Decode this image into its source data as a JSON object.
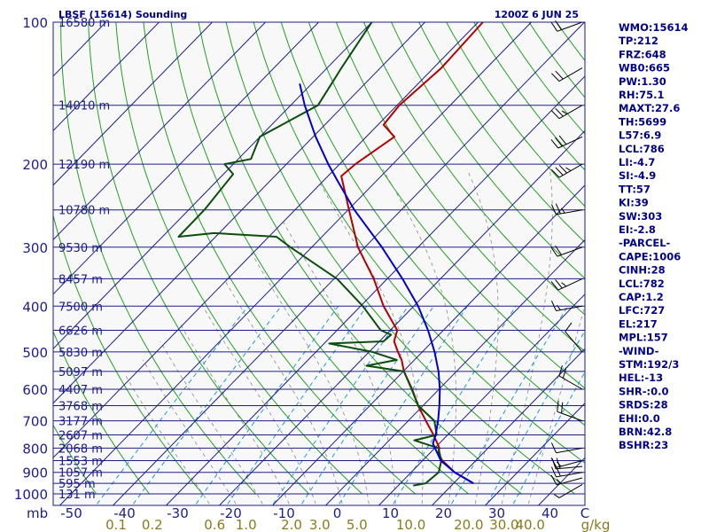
{
  "header": {
    "title": "LBSF (15614) Sounding",
    "valid_time": "1200Z  6 JUN 25"
  },
  "indices": [
    "WMO:15614",
    "TP:212",
    "FRZ:648",
    "WB0:665",
    "PW:1.30",
    "RH:75.1",
    "MAXT:27.6",
    "TH:5699",
    "L57:6.9",
    "LCL:786",
    "LI:-4.7",
    "SI:-4.9",
    "TT:57",
    "KI:39",
    "SW:303",
    "EI:-2.8",
    "-PARCEL-",
    "CAPE:1006",
    "CINH:28",
    "LCL:782",
    "CAP:1.2",
    "LFC:727",
    "EL:217",
    "MPL:157",
    "-WIND-",
    "STM:192/3",
    "HEL:-13",
    "SHR-:0.0",
    "SRDS:28",
    "EHI:0.0",
    "BRN:42.8",
    "BSHR:23"
  ],
  "colors": {
    "background": "#f8f8f8",
    "isobar": "#1d1d8a",
    "isotherm": "#1d1d8a",
    "dry_adiabat": "#22a022",
    "moist_adiabat": "#8a8a8a",
    "mixing_ratio": "#1a9ad6",
    "temperature": "#b40000",
    "dewpoint": "#0b4d0b",
    "parcel": "#0000c8",
    "wind_barb": "#000000"
  },
  "chart_data": {
    "type": "skew-t log-p",
    "pressure_axis": {
      "unit": "mb",
      "range": [
        1000,
        100
      ],
      "scale": "log",
      "tick_labels": [
        "100",
        "200",
        "300",
        "400",
        "500",
        "600",
        "700",
        "800",
        "900",
        "1000"
      ]
    },
    "temperature_axis": {
      "unit": "C",
      "tick_labels": [
        "-50",
        "-40",
        "-30",
        "-20",
        "-10",
        "0",
        "10",
        "20",
        "30",
        "40",
        "C"
      ]
    },
    "mixing_ratio_axis": {
      "unit": "g/kg",
      "tick_labels": [
        "0.1",
        "0.2",
        "0.6",
        "1.0",
        "2.0",
        "3.0",
        "5.0",
        "10.0",
        "20.0",
        "30.0",
        "40.0",
        "g/kg"
      ]
    },
    "height_labels": [
      {
        "p": 100,
        "label": "16580 m"
      },
      {
        "p": 150,
        "label": "14010 m"
      },
      {
        "p": 200,
        "label": "12190 m"
      },
      {
        "p": 250,
        "label": "10780 m"
      },
      {
        "p": 300,
        "label": "9530 m"
      },
      {
        "p": 350,
        "label": "8457 m"
      },
      {
        "p": 400,
        "label": "7500 m"
      },
      {
        "p": 450,
        "label": "6626 m"
      },
      {
        "p": 500,
        "label": "5830 m"
      },
      {
        "p": 550,
        "label": "5097 m"
      },
      {
        "p": 600,
        "label": "4407 m"
      },
      {
        "p": 650,
        "label": "3768 m"
      },
      {
        "p": 700,
        "label": "3177 m"
      },
      {
        "p": 750,
        "label": "2607 m"
      },
      {
        "p": 800,
        "label": "2068 m"
      },
      {
        "p": 850,
        "label": "1553 m"
      },
      {
        "p": 900,
        "label": "1057 m"
      },
      {
        "p": 950,
        "label": "595 m"
      },
      {
        "p": 1000,
        "label": "131 m"
      }
    ],
    "series": [
      {
        "name": "temperature",
        "points": [
          {
            "p": 950,
            "t": 25.8
          },
          {
            "p": 925,
            "t": 23.1
          },
          {
            "p": 900,
            "t": 20.2
          },
          {
            "p": 850,
            "t": 15.7
          },
          {
            "p": 820,
            "t": 13.5
          },
          {
            "p": 800,
            "t": 12.8
          },
          {
            "p": 750,
            "t": 9.2
          },
          {
            "p": 700,
            "t": 5.1
          },
          {
            "p": 650,
            "t": 0.8
          },
          {
            "p": 600,
            "t": -3.4
          },
          {
            "p": 550,
            "t": -8.3
          },
          {
            "p": 520,
            "t": -10.9
          },
          {
            "p": 500,
            "t": -13.1
          },
          {
            "p": 475,
            "t": -15.8
          },
          {
            "p": 450,
            "t": -17.3
          },
          {
            "p": 400,
            "t": -24.4
          },
          {
            "p": 350,
            "t": -31.4
          },
          {
            "p": 300,
            "t": -40.3
          },
          {
            "p": 250,
            "t": -49.0
          },
          {
            "p": 212,
            "t": -56.8
          },
          {
            "p": 200,
            "t": -56.4
          },
          {
            "p": 175,
            "t": -54.2
          },
          {
            "p": 165,
            "t": -58.5
          },
          {
            "p": 150,
            "t": -59.2
          },
          {
            "p": 125,
            "t": -58.3
          },
          {
            "p": 100,
            "t": -59.1
          }
        ]
      },
      {
        "name": "dewpoint",
        "points": [
          {
            "p": 960,
            "t": 14.9
          },
          {
            "p": 950,
            "t": 16.8
          },
          {
            "p": 900,
            "t": 17.2
          },
          {
            "p": 850,
            "t": 15.5
          },
          {
            "p": 800,
            "t": 12.6
          },
          {
            "p": 770,
            "t": 6.6
          },
          {
            "p": 750,
            "t": 9.8
          },
          {
            "p": 700,
            "t": 6.7
          },
          {
            "p": 650,
            "t": 0.8
          },
          {
            "p": 600,
            "t": -3.5
          },
          {
            "p": 550,
            "t": -8.3
          },
          {
            "p": 535,
            "t": -16.4
          },
          {
            "p": 520,
            "t": -11.8
          },
          {
            "p": 500,
            "t": -17.9
          },
          {
            "p": 480,
            "t": -27.6
          },
          {
            "p": 475,
            "t": -17.8
          },
          {
            "p": 460,
            "t": -17.6
          },
          {
            "p": 450,
            "t": -20.4
          },
          {
            "p": 400,
            "t": -28.3
          },
          {
            "p": 350,
            "t": -38.3
          },
          {
            "p": 300,
            "t": -53.0
          },
          {
            "p": 285,
            "t": -57.6
          },
          {
            "p": 280,
            "t": -70.0
          },
          {
            "p": 285,
            "t": -76.0
          },
          {
            "p": 250,
            "t": -76.2
          },
          {
            "p": 210,
            "t": -77.5
          },
          {
            "p": 200,
            "t": -81.0
          },
          {
            "p": 195,
            "t": -77.0
          },
          {
            "p": 175,
            "t": -79.5
          },
          {
            "p": 150,
            "t": -74.5
          },
          {
            "p": 125,
            "t": -77.1
          },
          {
            "p": 100,
            "t": -80.0
          }
        ]
      },
      {
        "name": "parcel",
        "points": [
          {
            "p": 950,
            "t": 25.8
          },
          {
            "p": 900,
            "t": 20.2
          },
          {
            "p": 850,
            "t": 15.4
          },
          {
            "p": 782,
            "t": 10.7
          },
          {
            "p": 750,
            "t": 9.6
          },
          {
            "p": 700,
            "t": 7.4
          },
          {
            "p": 650,
            "t": 4.8
          },
          {
            "p": 600,
            "t": 1.8
          },
          {
            "p": 550,
            "t": -1.8
          },
          {
            "p": 500,
            "t": -6.2
          },
          {
            "p": 450,
            "t": -11.5
          },
          {
            "p": 400,
            "t": -17.9
          },
          {
            "p": 350,
            "t": -26.0
          },
          {
            "p": 300,
            "t": -35.8
          },
          {
            "p": 250,
            "t": -48.0
          },
          {
            "p": 217,
            "t": -56.6
          },
          {
            "p": 200,
            "t": -61.5
          },
          {
            "p": 175,
            "t": -69.0
          },
          {
            "p": 150,
            "t": -77.0
          },
          {
            "p": 135,
            "t": -82.0
          }
        ]
      }
    ],
    "wind_barbs": [
      {
        "p": 955,
        "dir": 240,
        "kt": 5
      },
      {
        "p": 925,
        "dir": 255,
        "kt": 15
      },
      {
        "p": 900,
        "dir": 260,
        "kt": 20
      },
      {
        "p": 875,
        "dir": 265,
        "kt": 20
      },
      {
        "p": 850,
        "dir": 255,
        "kt": 15
      },
      {
        "p": 800,
        "dir": 260,
        "kt": 10
      },
      {
        "p": 700,
        "dir": 290,
        "kt": 20
      },
      {
        "p": 600,
        "dir": 300,
        "kt": 20
      },
      {
        "p": 500,
        "dir": 320,
        "kt": 10
      },
      {
        "p": 400,
        "dir": 260,
        "kt": 15
      },
      {
        "p": 350,
        "dir": 245,
        "kt": 25
      },
      {
        "p": 300,
        "dir": 250,
        "kt": 20
      },
      {
        "p": 250,
        "dir": 260,
        "kt": 25
      },
      {
        "p": 200,
        "dir": 240,
        "kt": 35
      },
      {
        "p": 175,
        "dir": 245,
        "kt": 30
      },
      {
        "p": 150,
        "dir": 240,
        "kt": 25
      },
      {
        "p": 125,
        "dir": 240,
        "kt": 20
      },
      {
        "p": 100,
        "dir": 250,
        "kt": 20
      }
    ]
  }
}
